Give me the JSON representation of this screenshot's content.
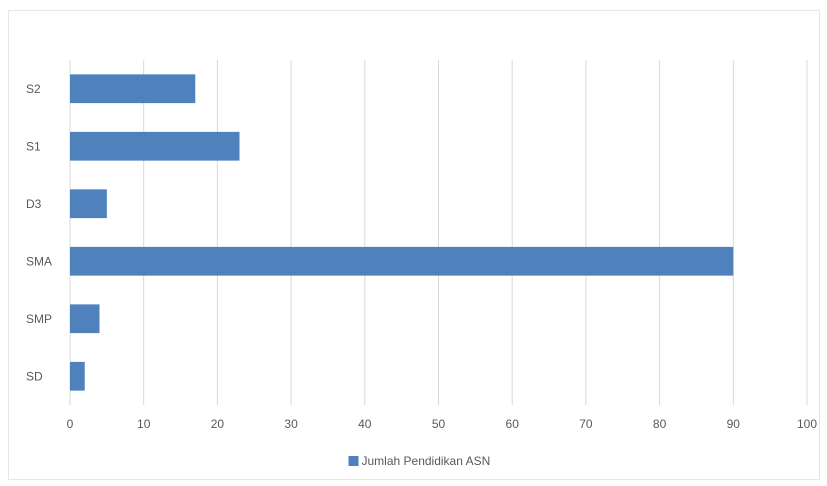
{
  "chart_data": {
    "type": "bar",
    "orientation": "horizontal",
    "categories": [
      "S2",
      "S1",
      "D3",
      "SMA",
      "SMP",
      "SD"
    ],
    "series": [
      {
        "name": "Jumlah Pendidikan ASN",
        "values": [
          17,
          23,
          5,
          90,
          4,
          2
        ],
        "color": "#4f81bd"
      }
    ],
    "xlim": [
      0,
      100
    ],
    "x_ticks": [
      "0",
      "10",
      "20",
      "30",
      "40",
      "50",
      "60",
      "70",
      "80",
      "90",
      "100"
    ],
    "grid": true,
    "legend_position": "bottom"
  }
}
